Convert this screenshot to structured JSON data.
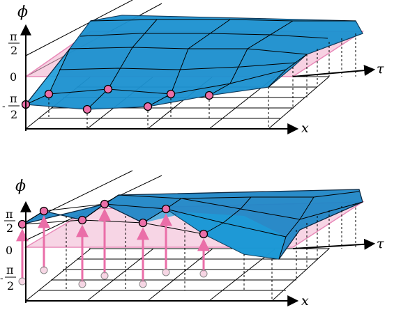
{
  "colors": {
    "surface_top": "#1f86c6",
    "surface_side": "#1a9fdc",
    "surface_edge": "#0b2a45",
    "pink_plane": "#f1b3cf",
    "marker": "#ec6fa8",
    "arrow": "#ea6ea8"
  },
  "top_panel": {
    "y_axis_symbol": "ϕ",
    "x_axis_symbol": "x",
    "tau_axis_symbol": "τ",
    "ticks": {
      "pi": "π",
      "two": "2",
      "zero": "0",
      "minus": "-"
    }
  },
  "bottom_panel": {
    "y_axis_symbol": "ϕ",
    "x_axis_symbol": "x",
    "tau_axis_symbol": "τ",
    "ticks": {
      "pi": "π",
      "two": "2",
      "zero": "0",
      "minus": "-"
    }
  }
}
